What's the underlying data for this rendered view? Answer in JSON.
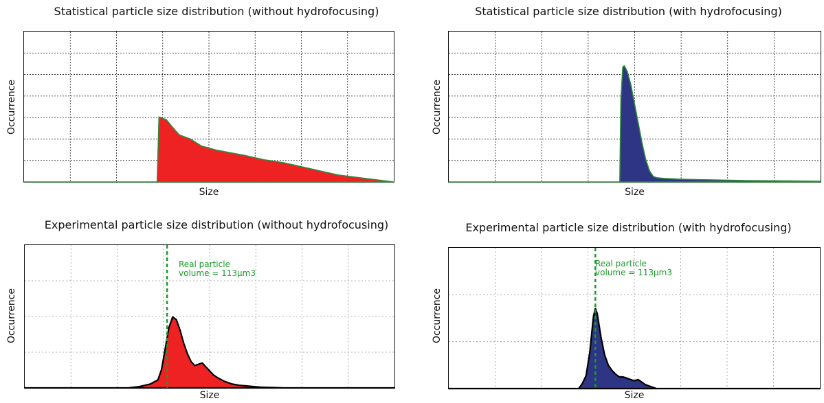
{
  "chart_data": [
    {
      "id": "tl",
      "type": "area",
      "title": "Statistical particle size distribution (without hydrofocusing)",
      "xlabel": "Size",
      "ylabel": "Occurrence",
      "xlim": [
        0,
        100
      ],
      "ylim": [
        0,
        100
      ],
      "grid": true,
      "fill_color": "#ee2222",
      "line_color": "#2e8b3a",
      "x": [
        0,
        36.0,
        36.5,
        37.5,
        38.5,
        40,
        42,
        45,
        48,
        52,
        56,
        60,
        65,
        70,
        75,
        80,
        85,
        100
      ],
      "values": [
        0,
        0,
        47,
        46,
        45,
        40,
        34,
        31,
        26,
        23,
        21,
        19,
        16,
        14,
        11,
        8,
        5,
        0
      ]
    },
    {
      "id": "tr",
      "type": "area",
      "title": "Statistical particle size distribution (with hydrofocusing)",
      "xlabel": "Size",
      "ylabel": "Occurrence",
      "xlim": [
        0,
        100
      ],
      "ylim": [
        0,
        100
      ],
      "grid": true,
      "fill_color": "#2e3585",
      "line_color": "#2e8b3a",
      "x": [
        0,
        46.0,
        46.3,
        46.8,
        47.2,
        48,
        49,
        50,
        51,
        52,
        53,
        54,
        55,
        56,
        58,
        62,
        70,
        80,
        90,
        100
      ],
      "values": [
        0,
        0,
        60,
        83,
        84,
        80,
        70,
        56,
        42,
        28,
        16,
        8,
        4,
        3,
        2.5,
        2,
        1.5,
        1,
        0.8,
        0.5
      ]
    },
    {
      "id": "bl",
      "type": "area",
      "title": "Experimental particle size distribution (without hydrofocusing)",
      "xlabel": "Size",
      "ylabel": "Occurrence",
      "xlim": [
        0,
        100
      ],
      "ylim": [
        0,
        100
      ],
      "grid": true,
      "fill_color": "#ee2222",
      "line_color": "#000000",
      "x": [
        0,
        28,
        31,
        34,
        36,
        37,
        38,
        39,
        40,
        41,
        42,
        43,
        44,
        45,
        46,
        47,
        48,
        49,
        50,
        51,
        52,
        54,
        56,
        58,
        60,
        62,
        64,
        67,
        70,
        100
      ],
      "values": [
        0,
        0,
        1,
        3,
        6,
        14,
        30,
        46,
        54,
        52,
        44,
        34,
        26,
        20,
        17,
        18,
        19,
        16,
        13,
        10,
        8,
        5,
        3,
        2,
        1.5,
        1,
        0.5,
        0.3,
        0,
        0
      ],
      "marker_x": 38.5,
      "annotation": [
        "Real particle",
        "volume = 113μm3"
      ]
    },
    {
      "id": "br",
      "type": "area",
      "title": "Experimental particle size distribution (with hydrofocusing)",
      "xlabel": "Size",
      "ylabel": "Occurrence",
      "xlim": [
        0,
        100
      ],
      "ylim": [
        0,
        100
      ],
      "grid": true,
      "fill_color": "#2e3585",
      "line_color": "#000000",
      "x": [
        0,
        35,
        36,
        37,
        38,
        39,
        39.5,
        40,
        41,
        42,
        43,
        44,
        45,
        46,
        47,
        48,
        49,
        50,
        51,
        52,
        53,
        54,
        55,
        56,
        100
      ],
      "values": [
        0,
        0,
        4,
        10,
        28,
        56,
        62,
        58,
        40,
        26,
        18,
        14,
        11,
        9,
        9,
        8,
        7,
        6,
        7,
        5,
        3,
        2,
        1,
        0,
        0
      ],
      "marker_x": 39.5,
      "annotation": [
        "Real particle",
        "volume = 113μm3"
      ]
    }
  ]
}
